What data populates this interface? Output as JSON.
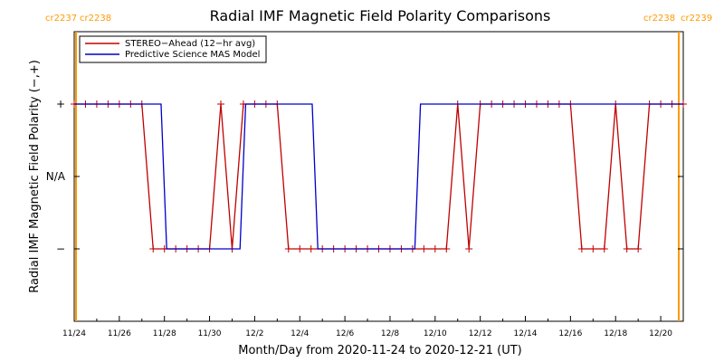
{
  "chart_data": {
    "type": "line",
    "title": "Radial IMF Magnetic Field Polarity Comparisons",
    "xlabel": "Month/Day from 2020-11-24 to 2020-12-21 (UT)",
    "ylabel": "Radial IMF Magnetic Field Polarity (−,+)",
    "x_start": "2020-11-24",
    "x_end": "2020-12-21",
    "x_tick_labels": [
      "11/24",
      "11/26",
      "11/28",
      "11/30",
      "12/2",
      "12/4",
      "12/6",
      "12/8",
      "12/10",
      "12/12",
      "12/14",
      "12/16",
      "12/18",
      "12/20"
    ],
    "y_tick_labels": [
      "−",
      "N/A",
      "+"
    ],
    "y_values_legend": {
      "-1": "−",
      "0": "N/A",
      "1": "+"
    },
    "ylim": [
      -2,
      2
    ],
    "cr_boundaries": [
      {
        "date": "2020-11-24",
        "left_label": "cr2237",
        "right_label": "cr2238",
        "color": "#ff9900"
      },
      {
        "date": "2020-12-20.8",
        "left_label": "cr2238",
        "right_label": "cr2239",
        "color": "#ff9900"
      }
    ],
    "series": [
      {
        "name": "STEREO−Ahead (12−hr avg)",
        "color": "#c00000",
        "marker": "plus",
        "x": [
          0.0,
          0.5,
          1.0,
          1.5,
          2.0,
          2.5,
          3.0,
          3.5,
          4.0,
          4.5,
          5.0,
          5.5,
          6.0,
          6.5,
          7.0,
          7.5,
          8.0,
          8.5,
          9.0,
          9.5,
          10.0,
          10.5,
          11.0,
          11.5,
          12.0,
          12.5,
          13.0,
          13.5,
          14.0,
          14.5,
          15.0,
          15.5,
          16.0,
          16.5,
          17.0,
          17.5,
          18.0,
          18.5,
          19.0,
          19.5,
          20.0,
          20.5,
          21.0,
          21.5,
          22.0,
          22.5,
          23.0,
          23.5,
          24.0,
          24.5,
          25.0,
          25.5,
          26.0,
          26.5,
          27.0
        ],
        "y": [
          1,
          1,
          1,
          1,
          1,
          1,
          1,
          -1,
          -1,
          -1,
          -1,
          -1,
          -1,
          1,
          -1,
          1,
          1,
          1,
          1,
          -1,
          -1,
          -1,
          -1,
          -1,
          -1,
          -1,
          -1,
          -1,
          -1,
          -1,
          -1,
          -1,
          -1,
          -1,
          1,
          -1,
          1,
          1,
          1,
          1,
          1,
          1,
          1,
          1,
          1,
          -1,
          -1,
          -1,
          1,
          -1,
          -1,
          1,
          1,
          1,
          1
        ]
      },
      {
        "name": "Predictive Science MAS Model",
        "color": "#0000cc",
        "marker": "none",
        "x": [
          0.0,
          3.85,
          3.85,
          4.1,
          4.1,
          7.35,
          7.35,
          7.6,
          7.6,
          10.55,
          10.55,
          10.8,
          10.8,
          15.1,
          15.1,
          15.35,
          15.35,
          27.0
        ],
        "y": [
          1,
          1,
          1,
          -1,
          -1,
          -1,
          -1,
          1,
          1,
          1,
          1,
          -1,
          -1,
          -1,
          -1,
          1,
          1,
          1
        ]
      }
    ],
    "legend": {
      "position": "top-left"
    }
  }
}
